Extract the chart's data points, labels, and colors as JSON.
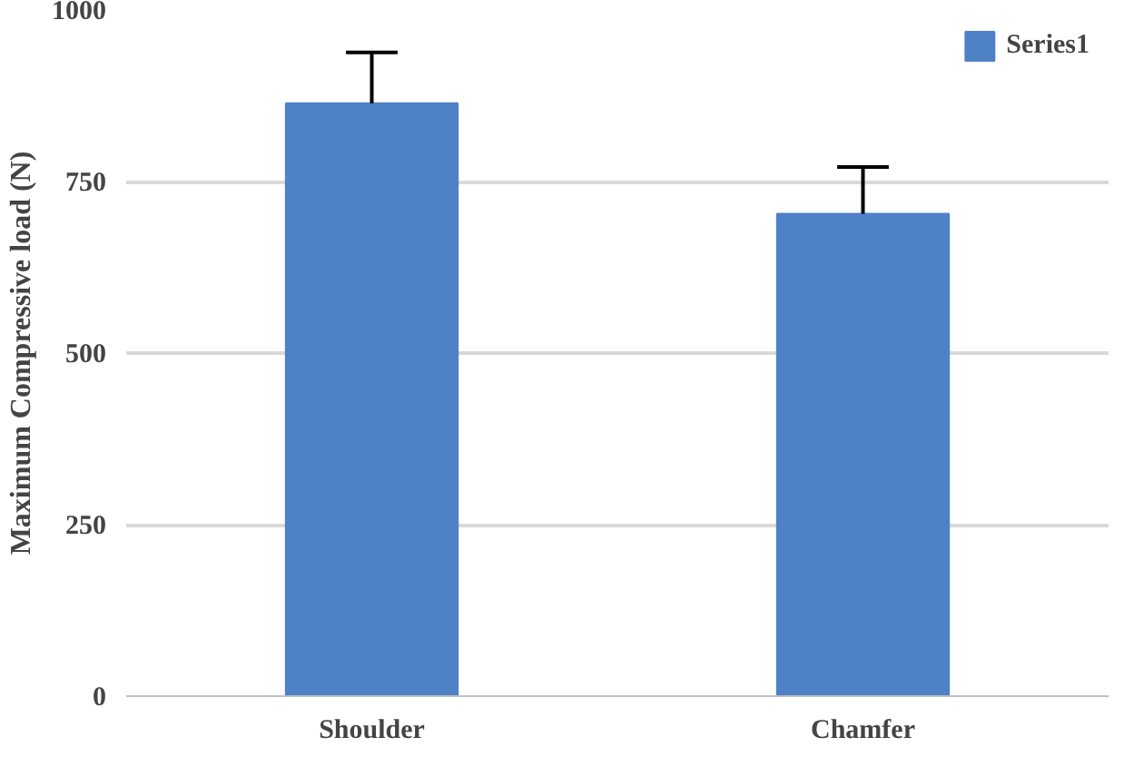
{
  "chart_data": {
    "type": "bar",
    "categories": [
      "Shoulder",
      "Chamfer"
    ],
    "ylabel": "Maximum Compressive load (N)",
    "series": [
      {
        "name": "Series1",
        "color": "#4f81c7",
        "values": [
          864,
          703
        ],
        "errors": [
          [
            864,
            938
          ],
          [
            703,
            771
          ]
        ]
      }
    ],
    "ylim": [
      0,
      1000
    ],
    "yticks": [
      0,
      250,
      500,
      750,
      1000
    ],
    "grid": "y",
    "legend": "top right"
  }
}
